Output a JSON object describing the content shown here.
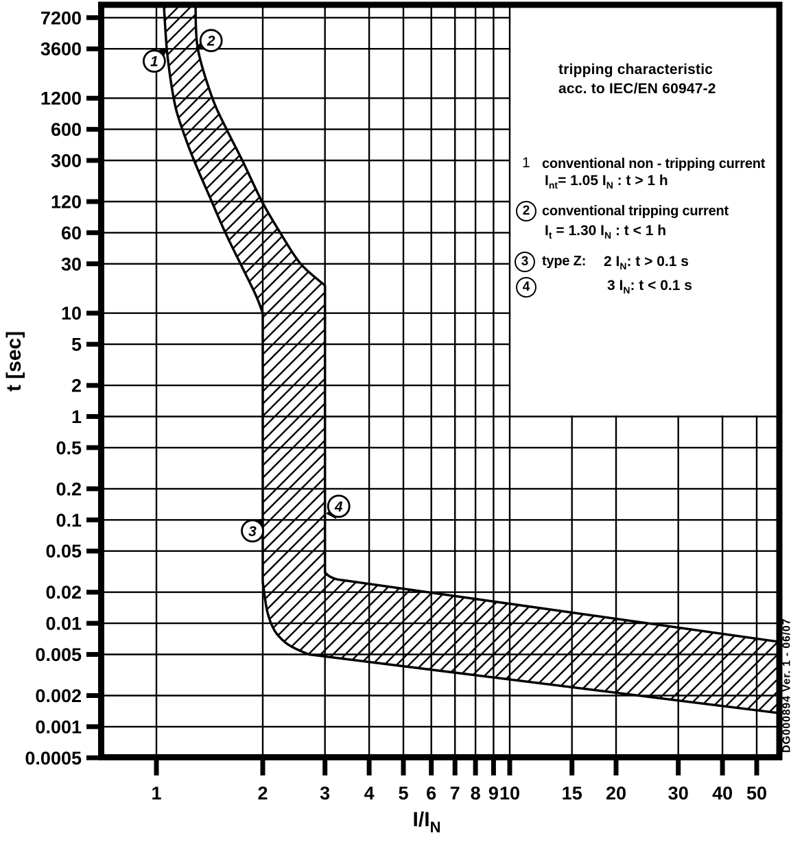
{
  "figure": {
    "watermark": "DG000894 Ver. 1 - 06/07"
  },
  "legend": {
    "title_line1": "tripping characteristic",
    "title_line2": "acc. to IEC/EN 60947-2",
    "items": [
      {
        "marker": "1",
        "circled": false,
        "line1": "conventional non - tripping current",
        "f": {
          "p1": "I",
          "s1": "nt",
          "p2": "= 1.05 I",
          "s2": "N",
          "p3": " : t > 1 h"
        }
      },
      {
        "marker": "2",
        "circled": true,
        "line1": "conventional tripping current",
        "f": {
          "p1": "I",
          "s1": "t",
          "p2": " = 1.30 I",
          "s2": "N",
          "p3": " : t < 1 h"
        }
      },
      {
        "marker": "3",
        "circled": true,
        "label": "type Z:",
        "f": {
          "p1": "2 I",
          "s1": "N",
          "p2": ": t > 0.1 s"
        }
      },
      {
        "marker": "4",
        "circled": true,
        "f": {
          "p1": "3 I",
          "s1": "N",
          "p2": ": t < 0.1 s"
        }
      }
    ]
  },
  "chart_data": {
    "type": "area",
    "title": "tripping characteristic acc. to IEC/EN 60947-2",
    "xlabel_main": "I/I",
    "xlabel_sub": "N",
    "ylabel": "t [sec]",
    "x_scale": "log",
    "y_scale": "log",
    "grid": true,
    "x_range": [
      0.7,
      58.2
    ],
    "y_range": [
      0.0005,
      9440
    ],
    "x_ticks": [
      {
        "v": 1,
        "label": "1"
      },
      {
        "v": 2,
        "label": "2"
      },
      {
        "v": 3,
        "label": "3"
      },
      {
        "v": 4,
        "label": "4"
      },
      {
        "v": 5,
        "label": "5"
      },
      {
        "v": 6,
        "label": "6"
      },
      {
        "v": 7,
        "label": "7"
      },
      {
        "v": 8,
        "label": "8"
      },
      {
        "v": 9,
        "label": "9"
      },
      {
        "v": 10,
        "label": "10"
      },
      {
        "v": 15,
        "label": "15"
      },
      {
        "v": 20,
        "label": "20"
      },
      {
        "v": 30,
        "label": "30"
      },
      {
        "v": 40,
        "label": "40"
      },
      {
        "v": 50,
        "label": "50"
      }
    ],
    "y_ticks": [
      {
        "v": 7200,
        "label": "7200"
      },
      {
        "v": 3600,
        "label": "3600"
      },
      {
        "v": 1200,
        "label": "1200"
      },
      {
        "v": 600,
        "label": "600"
      },
      {
        "v": 300,
        "label": "300"
      },
      {
        "v": 120,
        "label": "120"
      },
      {
        "v": 60,
        "label": "60"
      },
      {
        "v": 30,
        "label": "30"
      },
      {
        "v": 10,
        "label": "10"
      },
      {
        "v": 5,
        "label": "5"
      },
      {
        "v": 2,
        "label": "2"
      },
      {
        "v": 1,
        "label": "1"
      },
      {
        "v": 0.5,
        "label": "0.5"
      },
      {
        "v": 0.2,
        "label": "0.2"
      },
      {
        "v": 0.1,
        "label": "0.1"
      },
      {
        "v": 0.05,
        "label": "0.05"
      },
      {
        "v": 0.02,
        "label": "0.02"
      },
      {
        "v": 0.01,
        "label": "0.01"
      },
      {
        "v": 0.005,
        "label": "0.005"
      },
      {
        "v": 0.002,
        "label": "0.002"
      },
      {
        "v": 0.001,
        "label": "0.001"
      },
      {
        "v": 0.0005,
        "label": "0.0005"
      }
    ],
    "band": {
      "name": "type Z tripping band (hatched tolerance band)",
      "left_boundary": [
        {
          "mode": "smooth",
          "pts": [
            [
              1.05,
              9440
            ],
            [
              1.07,
              3600
            ],
            [
              1.1,
              1700
            ],
            [
              1.14,
              900
            ],
            [
              1.22,
              450
            ],
            [
              1.3,
              260
            ],
            [
              1.42,
              130
            ],
            [
              1.56,
              62
            ],
            [
              1.73,
              30
            ],
            [
              1.91,
              15
            ],
            [
              2.0,
              10
            ]
          ]
        },
        {
          "mode": "line",
          "pts": [
            [
              2.0,
              10
            ],
            [
              2.0,
              0.025
            ]
          ]
        },
        {
          "mode": "smooth",
          "pts": [
            [
              2.0,
              0.025
            ],
            [
              2.06,
              0.013
            ],
            [
              2.16,
              0.0085
            ],
            [
              2.32,
              0.0065
            ],
            [
              2.5,
              0.0056
            ],
            [
              2.7,
              0.005
            ]
          ]
        },
        {
          "mode": "line",
          "pts": [
            [
              2.7,
              0.005
            ],
            [
              58.2,
              0.00135
            ]
          ]
        }
      ],
      "right_boundary": [
        {
          "mode": "smooth",
          "pts": [
            [
              1.29,
              9440
            ],
            [
              1.31,
              3600
            ],
            [
              1.44,
              1200
            ],
            [
              1.58,
              600
            ],
            [
              1.75,
              300
            ],
            [
              1.99,
              120
            ],
            [
              2.24,
              60
            ],
            [
              2.56,
              30
            ],
            [
              3.0,
              18.5
            ]
          ]
        },
        {
          "mode": "line",
          "pts": [
            [
              3.0,
              18.5
            ],
            [
              3.0,
              0.031
            ]
          ]
        },
        {
          "mode": "smooth",
          "pts": [
            [
              3.0,
              0.031
            ],
            [
              3.08,
              0.0287
            ],
            [
              3.22,
              0.0268
            ],
            [
              3.4,
              0.026
            ]
          ]
        },
        {
          "mode": "line",
          "pts": [
            [
              3.4,
              0.026
            ],
            [
              58.2,
              0.0066
            ]
          ]
        }
      ]
    },
    "annotations": [
      {
        "id": "1",
        "x": 1.05,
        "t": 3600
      },
      {
        "id": "2",
        "x": 1.3,
        "t": 3600
      },
      {
        "id": "3",
        "x": 2,
        "t": 0.1
      },
      {
        "id": "4",
        "x": 3,
        "t": 0.12
      }
    ]
  },
  "colors": {
    "ink": "#000000",
    "paper": "#ffffff"
  }
}
